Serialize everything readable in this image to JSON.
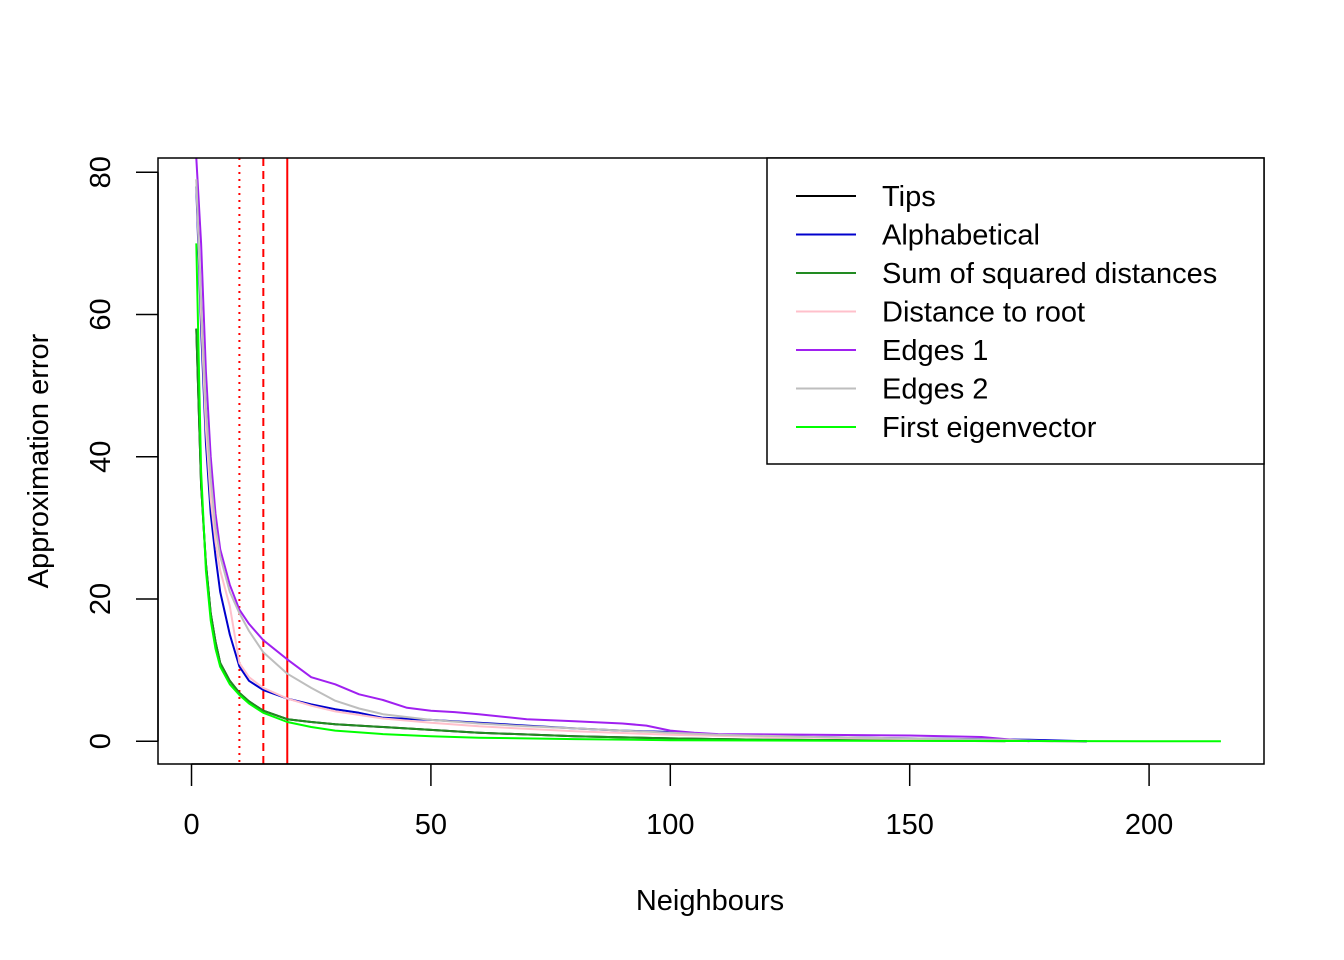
{
  "chart_data": {
    "type": "line",
    "title": "",
    "xlabel": "Neighbours",
    "ylabel": "Approximation error",
    "xlim": [
      -7,
      224
    ],
    "ylim": [
      -3.2,
      82
    ],
    "xticks": [
      0,
      50,
      100,
      150,
      200
    ],
    "yticks": [
      0,
      20,
      40,
      60,
      80
    ],
    "grid": false,
    "legend_position": "top-right",
    "vlines": [
      {
        "x": 10,
        "color": "#ff0000",
        "style": "dotted"
      },
      {
        "x": 15,
        "color": "#ff0000",
        "style": "dashed"
      },
      {
        "x": 20,
        "color": "#ff0000",
        "style": "solid"
      }
    ],
    "series": [
      {
        "name": "Tips",
        "color": "#000000",
        "x": [
          1,
          2,
          3,
          4,
          5,
          6,
          8,
          10,
          12,
          15,
          20,
          25,
          30,
          40,
          50,
          60,
          80,
          100,
          120,
          150,
          187
        ],
        "y": [
          58,
          36,
          25,
          18,
          14,
          11,
          8.5,
          6.8,
          5.6,
          4.3,
          3.1,
          2.7,
          2.4,
          2.0,
          1.6,
          1.2,
          0.7,
          0.4,
          0.2,
          0.1,
          0
        ]
      },
      {
        "name": "Alphabetical",
        "color": "#0000cd",
        "x": [
          1,
          2,
          3,
          4,
          5,
          6,
          8,
          10,
          12,
          15,
          20,
          25,
          30,
          35,
          40,
          50,
          60,
          70,
          80,
          90,
          100,
          110,
          130,
          150,
          175,
          187
        ],
        "y": [
          78,
          58,
          42,
          32,
          26,
          21,
          15,
          10.5,
          8.5,
          7.2,
          6.0,
          5.2,
          4.5,
          4.0,
          3.3,
          3.0,
          2.6,
          2.2,
          1.8,
          1.5,
          1.3,
          0.9,
          0.6,
          0.4,
          0.2,
          0
        ]
      },
      {
        "name": "Sum of squared distances",
        "color": "#228b22",
        "x": [
          1,
          2,
          3,
          4,
          5,
          6,
          8,
          10,
          12,
          15,
          20,
          25,
          30,
          40,
          50,
          60,
          80,
          100,
          120,
          150,
          170
        ],
        "y": [
          58,
          36,
          25,
          18,
          14,
          11,
          8.5,
          6.8,
          5.6,
          4.3,
          3.1,
          2.7,
          2.4,
          2.0,
          1.6,
          1.2,
          0.7,
          0.4,
          0.2,
          0.1,
          0
        ]
      },
      {
        "name": "Distance to root",
        "color": "#ffc0cb",
        "x": [
          1,
          2,
          3,
          4,
          5,
          6,
          8,
          10,
          12,
          15,
          20,
          25,
          30,
          40,
          50,
          60,
          80,
          100,
          120,
          150,
          180
        ],
        "y": [
          79,
          60,
          44,
          34,
          28,
          24,
          19,
          11,
          9,
          7.5,
          6.0,
          5.0,
          4.2,
          3.2,
          2.6,
          2.1,
          1.4,
          0.9,
          0.6,
          0.3,
          0
        ]
      },
      {
        "name": "Edges 1",
        "color": "#a020f0",
        "x": [
          1,
          2,
          3,
          4,
          5,
          6,
          8,
          10,
          12,
          15,
          20,
          23,
          25,
          30,
          35,
          40,
          45,
          50,
          55,
          60,
          70,
          80,
          90,
          95,
          100,
          105,
          110,
          130,
          150,
          165,
          175
        ],
        "y": [
          82,
          70,
          52,
          40,
          32,
          27,
          22,
          18.5,
          16.5,
          14.2,
          11.5,
          10,
          9,
          8,
          6.6,
          5.8,
          4.7,
          4.3,
          4.1,
          3.8,
          3.1,
          2.8,
          2.5,
          2.2,
          1.5,
          1.2,
          1.0,
          0.9,
          0.8,
          0.6,
          0
        ]
      },
      {
        "name": "Edges 2",
        "color": "#bebebe",
        "x": [
          1,
          2,
          3,
          4,
          5,
          6,
          8,
          10,
          12,
          15,
          20,
          25,
          30,
          35,
          40,
          50,
          60,
          70,
          80,
          90,
          100,
          110,
          130,
          150,
          170,
          180
        ],
        "y": [
          79,
          62,
          47,
          37,
          30,
          26,
          21,
          18,
          15.5,
          12.5,
          9.5,
          7.5,
          5.7,
          4.6,
          3.8,
          3.0,
          2.5,
          2.1,
          1.8,
          1.5,
          1.2,
          0.9,
          0.6,
          0.4,
          0.2,
          0
        ]
      },
      {
        "name": "First eigenvector",
        "color": "#00ff00",
        "x": [
          1,
          2,
          3,
          4,
          5,
          6,
          8,
          10,
          12,
          15,
          20,
          25,
          30,
          40,
          50,
          60,
          80,
          100,
          150,
          200,
          215
        ],
        "y": [
          70,
          38,
          24,
          17,
          13,
          10.5,
          8,
          6.5,
          5.3,
          4.0,
          2.7,
          2.0,
          1.5,
          1.0,
          0.7,
          0.5,
          0.3,
          0.15,
          0.05,
          0,
          0
        ]
      }
    ]
  }
}
